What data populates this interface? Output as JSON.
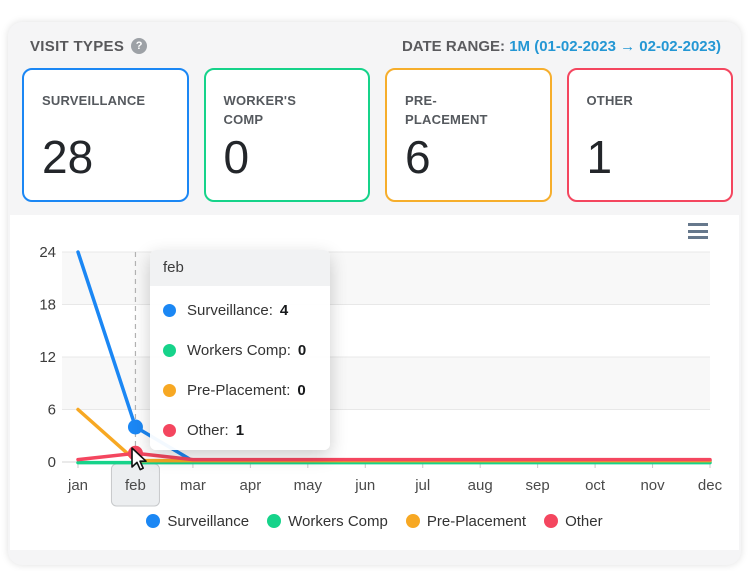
{
  "header": {
    "title": "VISIT TYPES",
    "help_icon": "question-mark-circle",
    "date_range": {
      "label": "DATE RANGE:",
      "value": "1M (01-02-2023 → 02-02-2023)",
      "color": "#2497d4"
    }
  },
  "cards": [
    {
      "label": "SURVEILLANCE",
      "value": "28",
      "color": "#1b87f4"
    },
    {
      "label": "WORKER'S COMP",
      "value": "0",
      "color": "#16d38a"
    },
    {
      "label": "PRE-PLACEMENT",
      "value": "6",
      "color": "#f6ae2c"
    },
    {
      "label": "OTHER",
      "value": "1",
      "color": "#f4465f"
    }
  ],
  "chart": {
    "menu_icon": "hamburger-menu",
    "cursor_icon": "mouse-pointer"
  },
  "chart_data": {
    "type": "line",
    "categories": [
      "jan",
      "feb",
      "mar",
      "apr",
      "may",
      "jun",
      "jul",
      "aug",
      "sep",
      "oct",
      "nov",
      "dec"
    ],
    "series": [
      {
        "name": "Surveillance",
        "color": "#1b87f4",
        "values": [
          24,
          4,
          0,
          0,
          0,
          0,
          0,
          0,
          0,
          0,
          0,
          0
        ]
      },
      {
        "name": "Workers Comp",
        "color": "#16d38a",
        "values": [
          0,
          0,
          0,
          0,
          0,
          0,
          0,
          0,
          0,
          0,
          0,
          0
        ]
      },
      {
        "name": "Pre-Placement",
        "color": "#f7a823",
        "values": [
          6,
          0,
          0,
          0,
          0,
          0,
          0,
          0,
          0,
          0,
          0,
          0
        ]
      },
      {
        "name": "Other",
        "color": "#f4465f",
        "values": [
          0,
          1,
          0,
          0,
          0,
          0,
          0,
          0,
          0,
          0,
          0,
          0
        ]
      }
    ],
    "ylim": [
      0,
      24
    ],
    "yticks": [
      0,
      6,
      12,
      18,
      24
    ],
    "xlabel": "",
    "ylabel": "",
    "grid": true,
    "alternate_bands": true,
    "legend_position": "bottom",
    "highlighted_category": "feb",
    "hover_markers": [
      {
        "series": "Surveillance",
        "category": "feb",
        "value": 4
      },
      {
        "series": "Other",
        "category": "feb",
        "value": 1
      }
    ]
  },
  "tooltip": {
    "title": "feb",
    "rows": [
      {
        "label": "Surveillance:",
        "value": "4",
        "color": "#1b87f4"
      },
      {
        "label": "Workers Comp:",
        "value": "0",
        "color": "#16d38a"
      },
      {
        "label": "Pre-Placement:",
        "value": "0",
        "color": "#f7a823"
      },
      {
        "label": "Other:",
        "value": "1",
        "color": "#f4465f"
      }
    ]
  }
}
